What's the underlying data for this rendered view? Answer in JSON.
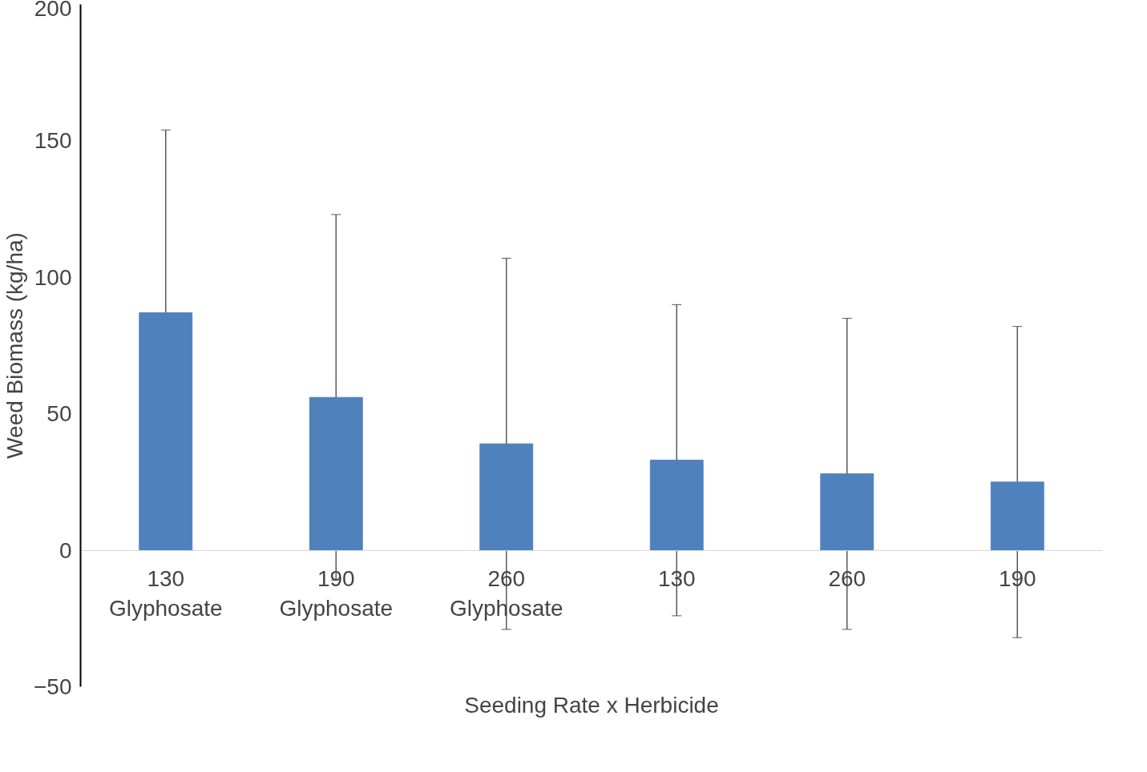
{
  "chart_data": {
    "type": "bar",
    "xlabel": "Seeding Rate x Herbicide",
    "ylabel": "Weed Biomass (kg/ha)",
    "categories": [
      "130\nGlyphosate",
      "190\nGlyphosate",
      "260\nGlyphosate",
      "130",
      "260",
      "190"
    ],
    "values": [
      87,
      56,
      39,
      33,
      28,
      25
    ],
    "errors": [
      67,
      67,
      68,
      57,
      57,
      57
    ],
    "color": "#4f81bd",
    "ylim": [
      -50,
      200
    ],
    "yticks": [
      -50,
      0,
      50,
      100,
      150,
      200
    ],
    "grid": false
  }
}
